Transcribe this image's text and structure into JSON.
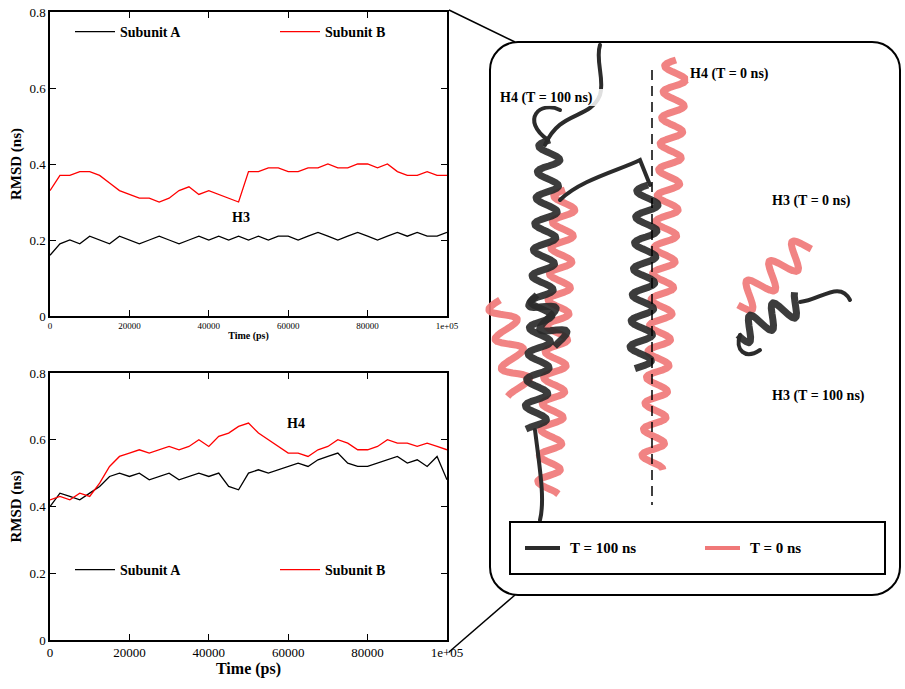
{
  "chart_data": [
    {
      "type": "line",
      "x_label": "Time (ps)",
      "y_label": "RMSD (ns)",
      "xlim": [
        0,
        100000
      ],
      "xticks": [
        0,
        20000,
        40000,
        60000,
        80000,
        {
          "value": 100000,
          "label": "1e+05"
        }
      ],
      "ylim": [
        0,
        0.8
      ],
      "yticks": [
        0,
        0.2,
        0.4,
        0.6,
        0.8
      ],
      "legend": "upper left",
      "annotations": [
        {
          "text": "H3",
          "x": 48000,
          "y": 0.26
        }
      ],
      "x": [
        0,
        2500,
        5000,
        7500,
        10000,
        12500,
        15000,
        17500,
        20000,
        22500,
        25000,
        27500,
        30000,
        32500,
        35000,
        37500,
        40000,
        42500,
        45000,
        47500,
        50000,
        52500,
        55000,
        57500,
        60000,
        62500,
        65000,
        67500,
        70000,
        72500,
        75000,
        77500,
        80000,
        82500,
        85000,
        87500,
        90000,
        92500,
        95000,
        97500,
        100000
      ],
      "series": [
        {
          "name": "Subunit A",
          "color": "#000000",
          "values": [
            0.16,
            0.19,
            0.2,
            0.19,
            0.21,
            0.2,
            0.19,
            0.21,
            0.2,
            0.19,
            0.2,
            0.21,
            0.2,
            0.19,
            0.2,
            0.21,
            0.2,
            0.21,
            0.2,
            0.21,
            0.2,
            0.21,
            0.2,
            0.21,
            0.21,
            0.2,
            0.21,
            0.22,
            0.21,
            0.2,
            0.21,
            0.22,
            0.21,
            0.2,
            0.21,
            0.22,
            0.21,
            0.22,
            0.21,
            0.21,
            0.22
          ]
        },
        {
          "name": "Subunit B",
          "color": "#ff0000",
          "values": [
            0.33,
            0.37,
            0.37,
            0.38,
            0.38,
            0.37,
            0.35,
            0.33,
            0.32,
            0.31,
            0.31,
            0.3,
            0.31,
            0.33,
            0.34,
            0.32,
            0.33,
            0.32,
            0.31,
            0.3,
            0.38,
            0.38,
            0.39,
            0.39,
            0.38,
            0.38,
            0.39,
            0.39,
            0.4,
            0.39,
            0.39,
            0.4,
            0.4,
            0.39,
            0.4,
            0.38,
            0.37,
            0.37,
            0.38,
            0.37,
            0.37
          ]
        }
      ]
    },
    {
      "type": "line",
      "x_label": "Time (ps)",
      "y_label": "RMSD (ns)",
      "xlim": [
        0,
        100000
      ],
      "xticks": [
        0,
        20000,
        40000,
        60000,
        80000,
        {
          "value": 100000,
          "label": "1e+05"
        }
      ],
      "ylim": [
        0,
        0.8
      ],
      "yticks": [
        0,
        0.2,
        0.4,
        0.6,
        0.8
      ],
      "legend": "lower left",
      "annotations": [
        {
          "text": "H4",
          "x": 62000,
          "y": 0.65
        }
      ],
      "x": [
        0,
        2500,
        5000,
        7500,
        10000,
        12500,
        15000,
        17500,
        20000,
        22500,
        25000,
        27500,
        30000,
        32500,
        35000,
        37500,
        40000,
        42500,
        45000,
        47500,
        50000,
        52500,
        55000,
        57500,
        60000,
        62500,
        65000,
        67500,
        70000,
        72500,
        75000,
        77500,
        80000,
        82500,
        85000,
        87500,
        90000,
        92500,
        95000,
        97500,
        100000
      ],
      "series": [
        {
          "name": "Subunit A",
          "color": "#000000",
          "values": [
            0.4,
            0.44,
            0.43,
            0.42,
            0.44,
            0.46,
            0.49,
            0.5,
            0.49,
            0.5,
            0.48,
            0.49,
            0.5,
            0.48,
            0.49,
            0.5,
            0.49,
            0.5,
            0.46,
            0.45,
            0.5,
            0.51,
            0.5,
            0.51,
            0.52,
            0.53,
            0.52,
            0.54,
            0.55,
            0.56,
            0.53,
            0.52,
            0.52,
            0.53,
            0.54,
            0.55,
            0.53,
            0.54,
            0.52,
            0.55,
            0.48
          ]
        },
        {
          "name": "Subunit B",
          "color": "#ff0000",
          "values": [
            0.42,
            0.43,
            0.42,
            0.44,
            0.43,
            0.47,
            0.52,
            0.55,
            0.56,
            0.57,
            0.56,
            0.57,
            0.58,
            0.57,
            0.58,
            0.6,
            0.58,
            0.61,
            0.62,
            0.64,
            0.65,
            0.62,
            0.6,
            0.58,
            0.56,
            0.56,
            0.55,
            0.57,
            0.58,
            0.6,
            0.59,
            0.57,
            0.57,
            0.58,
            0.6,
            0.59,
            0.59,
            0.58,
            0.59,
            0.58,
            0.57
          ]
        }
      ]
    }
  ],
  "diagram": {
    "labels": [
      "H4 (T = 100 ns)",
      "H4 (T = 0 ns)",
      "H3 (T = 0 ns)",
      "H3 (T = 100 ns)"
    ],
    "legend": [
      {
        "name": "T = 100 ns",
        "color": "#2b2b2b"
      },
      {
        "name": "T = 0 ns",
        "color": "#f07878"
      }
    ]
  }
}
